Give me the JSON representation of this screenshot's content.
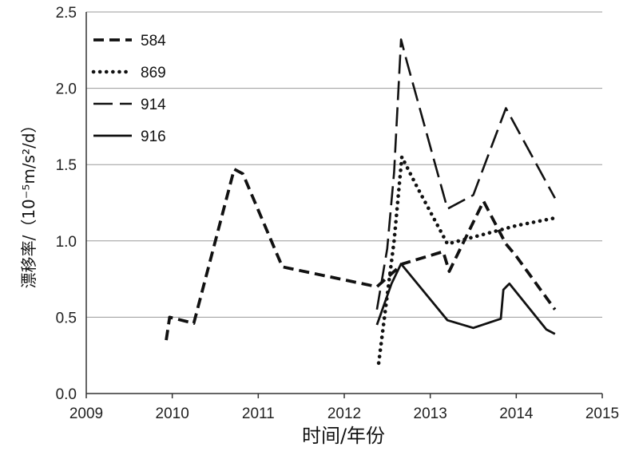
{
  "chart_data": {
    "type": "line",
    "xlabel": "时间/年份",
    "ylabel": "漂移率/（10⁻⁵m/s²/d）",
    "xlim": [
      2009,
      2015
    ],
    "ylim": [
      0,
      2.5
    ],
    "x_ticks": [
      2009,
      2010,
      2011,
      2012,
      2013,
      2014,
      2015
    ],
    "x_tick_labels": [
      "2009",
      "2010",
      "2011",
      "2012",
      "2013",
      "2014",
      "2015"
    ],
    "y_ticks": [
      0,
      0.5,
      1.0,
      1.5,
      2.0,
      2.5
    ],
    "y_tick_labels": [
      "0.0",
      "0.5",
      "1.0",
      "1.5",
      "2.0",
      "2.5"
    ],
    "grid": "horizontal",
    "legend_position": "top-left",
    "series": [
      {
        "name": "584",
        "style": "dashed",
        "color": "#111111",
        "x": [
          2009.93,
          2009.97,
          2010.25,
          2010.72,
          2010.82,
          2011.28,
          2012.38,
          2012.68,
          2013.15,
          2013.22,
          2013.62,
          2013.88,
          2014.0,
          2014.45
        ],
        "y": [
          0.35,
          0.5,
          0.46,
          1.47,
          1.44,
          0.83,
          0.7,
          0.85,
          0.93,
          0.8,
          1.26,
          0.98,
          0.9,
          0.55
        ]
      },
      {
        "name": "869",
        "style": "dotted",
        "color": "#111111",
        "x": [
          2012.4,
          2012.58,
          2012.67,
          2012.85,
          2013.2,
          2013.6,
          2014.0,
          2014.45
        ],
        "y": [
          0.2,
          1.0,
          1.55,
          1.35,
          0.98,
          1.04,
          1.1,
          1.15
        ]
      },
      {
        "name": "914",
        "style": "long-dash",
        "color": "#111111",
        "x": [
          2012.38,
          2012.5,
          2012.58,
          2012.66,
          2012.73,
          2013.2,
          2013.5,
          2013.88,
          2014.45
        ],
        "y": [
          0.55,
          0.95,
          1.45,
          2.32,
          2.17,
          1.21,
          1.3,
          1.87,
          1.28
        ]
      },
      {
        "name": "916",
        "style": "solid",
        "color": "#111111",
        "x": [
          2012.38,
          2012.55,
          2012.66,
          2013.2,
          2013.5,
          2013.82,
          2013.85,
          2013.92,
          2014.35,
          2014.45
        ],
        "y": [
          0.45,
          0.72,
          0.85,
          0.48,
          0.43,
          0.49,
          0.68,
          0.72,
          0.42,
          0.39
        ]
      }
    ]
  }
}
